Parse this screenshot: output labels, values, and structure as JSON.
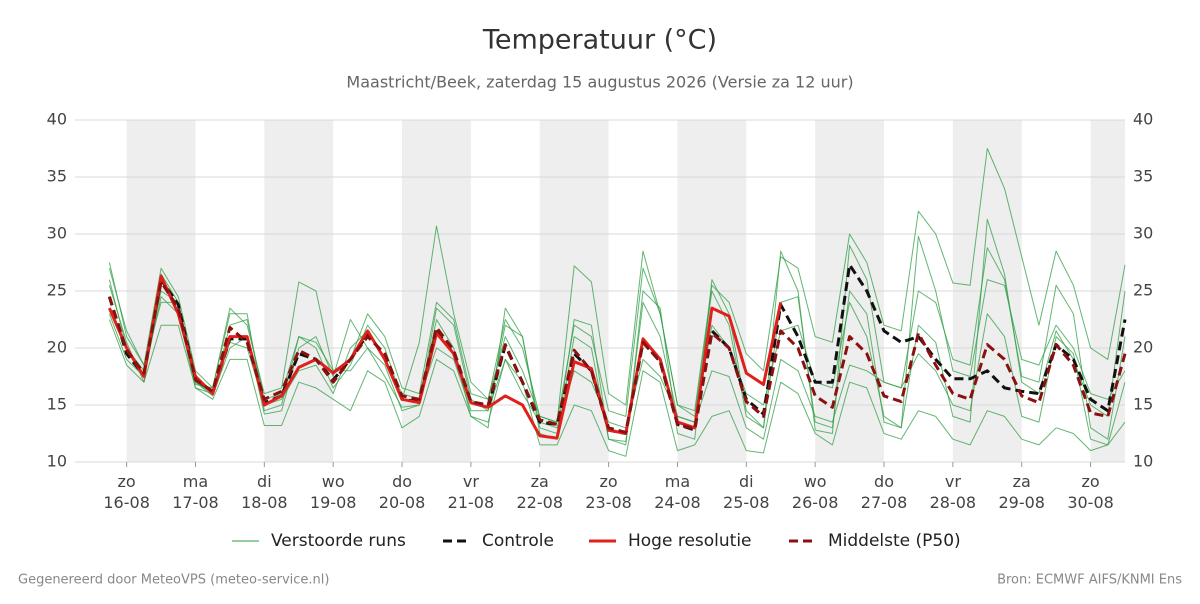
{
  "chart_data": {
    "type": "line",
    "title": "Temperatuur (°C)",
    "subtitle": "Maastricht/Beek, zaterdag 15 augustus 2026 (Versie za 12 uur)",
    "footer_left": "Gegenereerd door MeteoVPS (meteo-service.nl)",
    "footer_right": "Bron: ECMWF AIFS/KNMI Ens",
    "grid": true,
    "shaded_days": true,
    "xlim": [
      -0.75,
      14.5
    ],
    "xticks": [
      {
        "value": 0,
        "label": "zo 16-08"
      },
      {
        "value": 1,
        "label": "ma 17-08"
      },
      {
        "value": 2,
        "label": "di 18-08"
      },
      {
        "value": 3,
        "label": "wo 19-08"
      },
      {
        "value": 4,
        "label": "do 20-08"
      },
      {
        "value": 5,
        "label": "vr 21-08"
      },
      {
        "value": 6,
        "label": "za 22-08"
      },
      {
        "value": 7,
        "label": "zo 23-08"
      },
      {
        "value": 8,
        "label": "ma 24-08"
      },
      {
        "value": 9,
        "label": "di 25-08"
      },
      {
        "value": 10,
        "label": "wo 26-08"
      },
      {
        "value": 11,
        "label": "do 27-08"
      },
      {
        "value": 12,
        "label": "vr 28-08"
      },
      {
        "value": 13,
        "label": "za 29-08"
      },
      {
        "value": 14,
        "label": "zo 30-08"
      }
    ],
    "ylim": [
      10,
      40
    ],
    "yticks": [
      10,
      15,
      20,
      25,
      30,
      35,
      40
    ],
    "x": [
      -0.25,
      0,
      0.25,
      0.5,
      0.75,
      1,
      1.25,
      1.5,
      1.75,
      2,
      2.25,
      2.5,
      2.75,
      3,
      3.25,
      3.5,
      3.75,
      4,
      4.25,
      4.5,
      4.75,
      5,
      5.25,
      5.5,
      5.75,
      6,
      6.25,
      6.5,
      6.75,
      7,
      7.25,
      7.5,
      7.75,
      8,
      8.25,
      8.5,
      8.75,
      9,
      9.25,
      9.5,
      9.75,
      10,
      10.25,
      10.5,
      10.75,
      11,
      11.25,
      11.5,
      11.75,
      12,
      12.25,
      12.5,
      12.75,
      13,
      13.25,
      13.5,
      13.75,
      14,
      14.25,
      14.5
    ],
    "series": [
      {
        "name": "Verstoorde runs",
        "color": "#2e9e44",
        "dashed": false,
        "members": [
          [
            27,
            21.5,
            18.5,
            27,
            24.5,
            18,
            16.5,
            23.5,
            22,
            16,
            16.5,
            25.8,
            25,
            18,
            19,
            23,
            21,
            16.5,
            16,
            24,
            22.5,
            16,
            15.5,
            21,
            18,
            14,
            13.5,
            22,
            21,
            14.5,
            14,
            27,
            23,
            15,
            14.5,
            25.5,
            24,
            19.5,
            18,
            28,
            27,
            21,
            20.5,
            30,
            27.5,
            22,
            21.5,
            32,
            30,
            25.7,
            25.5,
            37.5,
            34,
            28,
            22,
            28.5,
            25.5,
            20,
            19,
            27.3
          ],
          [
            22.5,
            18.5,
            17,
            22,
            22,
            16.5,
            15.5,
            19,
            19,
            13.2,
            13.2,
            17,
            16.5,
            15.5,
            14.5,
            18,
            17,
            13,
            14,
            19,
            18,
            14,
            13.5,
            19,
            17,
            11.5,
            11.5,
            15,
            14.5,
            11,
            10.5,
            18,
            17,
            11,
            11.5,
            14,
            14.5,
            11,
            10.8,
            17,
            16,
            12.5,
            11.5,
            17,
            16.5,
            12.5,
            12,
            14.5,
            14,
            12,
            11.5,
            14.5,
            14,
            12,
            11.5,
            13,
            12.5,
            11,
            11.5,
            13.5
          ],
          [
            26,
            20,
            18,
            25,
            24,
            17,
            16,
            22,
            22.5,
            15.5,
            16,
            21,
            20,
            16.5,
            18.5,
            22,
            20,
            15.5,
            20.5,
            30.7,
            23,
            17,
            15.5,
            22.5,
            20,
            14,
            13.5,
            27.2,
            25.8,
            16,
            15,
            28.5,
            23,
            15,
            14,
            25,
            22,
            14,
            13,
            24,
            24.5,
            13.5,
            13,
            25,
            23,
            13.5,
            13,
            22,
            20.5,
            14,
            13.5,
            31.3,
            26.5,
            17,
            16,
            21.5,
            19,
            15,
            14,
            25
          ],
          [
            25.5,
            20.5,
            17,
            26.5,
            24,
            17,
            15.8,
            20,
            21,
            14.2,
            14.5,
            20,
            21,
            17.5,
            22.5,
            20,
            18.5,
            14.5,
            15,
            22.5,
            20,
            14,
            13,
            23.5,
            21,
            12.5,
            12,
            21,
            20,
            12,
            11.5,
            25,
            23.5,
            12.5,
            12,
            26,
            23,
            14.5,
            13,
            28.5,
            25,
            12.8,
            12.5,
            29,
            26,
            17,
            16.5,
            25,
            24,
            19,
            18.5,
            28.8,
            26,
            17.5,
            17,
            25.5,
            23,
            13,
            12,
            21
          ],
          [
            27.5,
            21,
            18.5,
            24,
            24,
            16.8,
            16.5,
            23,
            23,
            14.5,
            15,
            21,
            20.5,
            18,
            18,
            20,
            17.5,
            14.8,
            15,
            23.5,
            22,
            15.5,
            14.5,
            22,
            21,
            13,
            12.5,
            22.5,
            22,
            12,
            11.8,
            24,
            21,
            14,
            13.5,
            22,
            20,
            16,
            15,
            21.5,
            22,
            17,
            16.5,
            24,
            21,
            14,
            13,
            29.8,
            25,
            18,
            17.5,
            26,
            25.5,
            19,
            18.5,
            22,
            20,
            16,
            15.5,
            18
          ],
          [
            23,
            19,
            17.5,
            24.5,
            23,
            16.5,
            16,
            20.5,
            20,
            15,
            15.5,
            18,
            18.5,
            16,
            20,
            21.5,
            19,
            16,
            15.5,
            20,
            19,
            14.5,
            14.5,
            19,
            16,
            13.5,
            13,
            18,
            17,
            13.5,
            13,
            19,
            17.5,
            14,
            13.5,
            18,
            17.5,
            13,
            12,
            19,
            18,
            14,
            13.5,
            18.5,
            18,
            17,
            16.5,
            19.5,
            18,
            15,
            14.5,
            23,
            21,
            14,
            13.5,
            21,
            19.5,
            12,
            11.5,
            17
          ]
        ]
      },
      {
        "name": "Controle",
        "color": "#111111",
        "dashed": true,
        "values": [
          24.5,
          19.5,
          17.6,
          26,
          23.8,
          17.3,
          16.1,
          20.8,
          20.8,
          15.2,
          15.8,
          19.5,
          19,
          17.2,
          19,
          21.2,
          19.3,
          15.5,
          15.3,
          21.5,
          19.5,
          15.2,
          14.8,
          20.2,
          17,
          13.5,
          13.3,
          19.5,
          18,
          12.8,
          12.5,
          20.5,
          18.8,
          13.3,
          12.8,
          21.5,
          20,
          15.5,
          14.2,
          23.8,
          21,
          17,
          17,
          27.3,
          25,
          21.5,
          20.5,
          21,
          19,
          17.3,
          17.3,
          18,
          16.5,
          16.2,
          16,
          20.3,
          19,
          15.5,
          14.5,
          22.5
        ]
      },
      {
        "name": "Hoge resolutie",
        "color": "#e0201b",
        "dashed": false,
        "values": [
          23.5,
          20,
          17.5,
          26.3,
          23,
          17.5,
          16,
          21,
          21,
          15,
          15.8,
          18.3,
          19,
          17.8,
          19,
          21.5,
          19,
          15.5,
          15.2,
          21.3,
          19.5,
          15.2,
          14.8,
          15.8,
          15,
          12.3,
          12.1,
          18.8,
          18.2,
          12.8,
          12.5,
          20.8,
          19,
          13.5,
          13,
          23.5,
          22.8,
          17.8,
          16.8,
          24,
          null,
          null,
          null,
          null,
          null,
          null,
          null,
          null,
          null,
          null,
          null,
          null,
          null,
          null,
          null,
          null,
          null,
          null,
          null,
          null
        ]
      },
      {
        "name": "Middelste (P50)",
        "color": "#8b1010",
        "dashed": true,
        "values": [
          24.5,
          19.8,
          17.8,
          25.8,
          23.5,
          17.2,
          16.2,
          21.8,
          20.5,
          15.5,
          16.2,
          19.8,
          19,
          17,
          19,
          21,
          19.5,
          15.8,
          15.5,
          21.8,
          19.8,
          15.3,
          15,
          20.3,
          17,
          13.7,
          13.3,
          19.8,
          18,
          13,
          12.6,
          20.5,
          18.8,
          13.3,
          12.9,
          21.3,
          20,
          15.3,
          14,
          21.5,
          20,
          15.8,
          14.8,
          21,
          19.5,
          15.8,
          15.3,
          21.3,
          18.5,
          16,
          15.5,
          20.3,
          19,
          15.8,
          15.2,
          20.3,
          18.5,
          14.3,
          14,
          19.5
        ]
      }
    ]
  }
}
